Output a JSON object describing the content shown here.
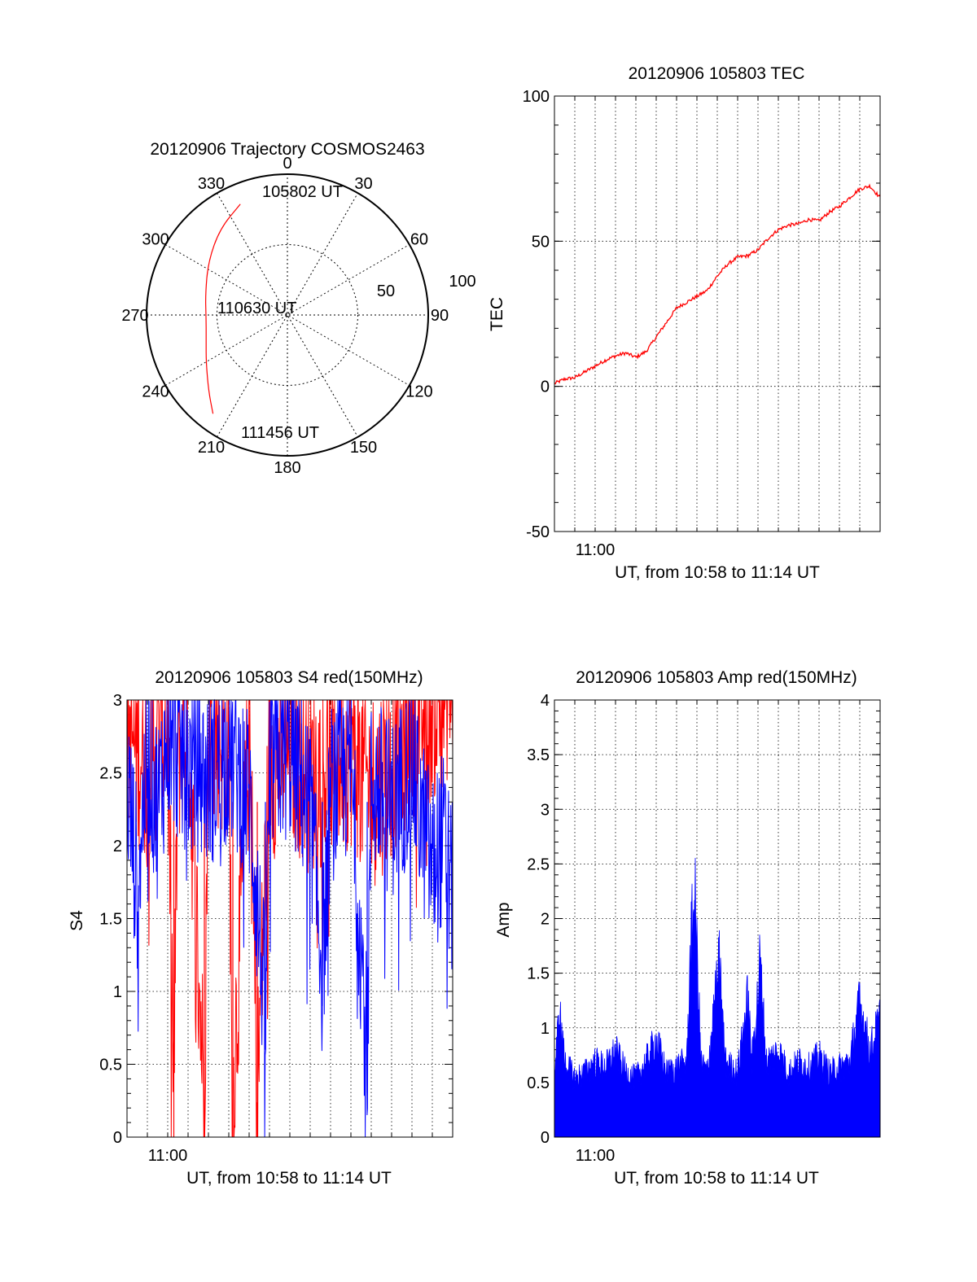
{
  "chart_data": [
    {
      "type": "polar",
      "title": "20120906 Trajectory COSMOS2463",
      "azimuth_labels": [
        "0",
        "30",
        "60",
        "90",
        "120",
        "150",
        "180",
        "210",
        "240",
        "270",
        "300",
        "330"
      ],
      "radius_labels": [
        "50",
        "100"
      ],
      "annotations": [
        "105802 UT",
        "110630 UT",
        "111456 UT"
      ],
      "trajectory": {
        "color": "#ff0000",
        "points": [
          {
            "az": 337,
            "el": 13
          },
          {
            "az": 322,
            "el": 20
          },
          {
            "az": 304,
            "el": 29
          },
          {
            "az": 284,
            "el": 36
          },
          {
            "az": 268,
            "el": 38
          },
          {
            "az": 254,
            "el": 36
          },
          {
            "az": 240,
            "el": 30
          },
          {
            "az": 226,
            "el": 20
          },
          {
            "az": 217,
            "el": 11
          }
        ]
      }
    },
    {
      "type": "line",
      "title": "20120906 105803 TEC",
      "xlabel": "UT, from 10:58 to 11:14 UT",
      "ylabel": "TEC",
      "x_tick_labels": [
        "11:00"
      ],
      "y_tick_labels": [
        "-50",
        "0",
        "50",
        "100"
      ],
      "xlim": [
        0,
        16
      ],
      "ylim": [
        -50,
        100
      ],
      "grid": true,
      "series": [
        {
          "color": "#ff0000",
          "x": [
            0,
            0.5,
            1,
            1.5,
            2,
            2.5,
            3,
            3.5,
            4,
            4.5,
            5,
            5.5,
            6,
            6.5,
            7,
            7.5,
            8,
            8.5,
            9,
            9.5,
            10,
            10.5,
            11,
            11.5,
            12,
            12.5,
            13,
            13.5,
            14,
            14.5,
            15,
            15.5,
            16
          ],
          "y": [
            1,
            2.5,
            3,
            5,
            7,
            9,
            10.5,
            11.5,
            10,
            12,
            17,
            22,
            27,
            29,
            31,
            33,
            38,
            42,
            44.5,
            45,
            47,
            51,
            54,
            55.5,
            56,
            57.5,
            57,
            60,
            62,
            65,
            68,
            69,
            65
          ]
        }
      ]
    },
    {
      "type": "line",
      "title": "20120906 105803 S4 red(150MHz)",
      "xlabel": "UT, from 10:58 to 11:14 UT",
      "ylabel": "S4",
      "x_tick_labels": [
        "11:00"
      ],
      "y_tick_labels": [
        "0",
        "0.5",
        "1",
        "1.5",
        "2",
        "2.5",
        "3"
      ],
      "xlim": [
        0,
        16
      ],
      "ylim": [
        0,
        3
      ],
      "grid": true,
      "series": [
        {
          "color": "#ff0000",
          "x": [
            0,
            1,
            2,
            2.3,
            2.5,
            3,
            3.8,
            4,
            5,
            5.2,
            6,
            6.4,
            7,
            8,
            9,
            10,
            11,
            12,
            13,
            14,
            15,
            15.5,
            16
          ],
          "y": [
            2.5,
            2.3,
            2.6,
            0,
            2.4,
            2.5,
            0,
            2.6,
            2.4,
            0,
            2.5,
            0,
            2.3,
            2.4,
            2.2,
            2.3,
            2.4,
            2.1,
            2.3,
            2.6,
            2.7,
            2.8,
            2.9
          ]
        },
        {
          "color": "#0000ff",
          "x": [
            0,
            0.5,
            1,
            1.5,
            2,
            3,
            4,
            5,
            6,
            6.8,
            7,
            8,
            9,
            9.6,
            10,
            11,
            11.8,
            12,
            13,
            14,
            14.5,
            15,
            15.5,
            16
          ],
          "y": [
            2.2,
            1.5,
            2.4,
            2.0,
            2.5,
            2.3,
            2.2,
            2.4,
            2.1,
            0.6,
            2.3,
            2.4,
            2.0,
            0.9,
            2.1,
            2.3,
            0.3,
            2.2,
            2.0,
            2.3,
            1.9,
            1.6,
            1.8,
            1.4
          ]
        }
      ]
    },
    {
      "type": "area",
      "title": "20120906 105803 Amp red(150MHz)",
      "xlabel": "UT, from 10:58 to 11:14 UT",
      "ylabel": "Amp",
      "x_tick_labels": [
        "11:00"
      ],
      "y_tick_labels": [
        "0",
        "0.5",
        "1",
        "1.5",
        "2",
        "2.5",
        "3",
        "3.5",
        "4"
      ],
      "xlim": [
        0,
        16
      ],
      "ylim": [
        0,
        4
      ],
      "grid": true,
      "series": [
        {
          "color": "#0000ff",
          "x": [
            0,
            0.25,
            0.5,
            1,
            1.5,
            2,
            2.5,
            3,
            3.5,
            4,
            4.5,
            5,
            5.5,
            6,
            6.5,
            6.7,
            6.9,
            7.2,
            7.5,
            8,
            8.1,
            8.4,
            9,
            9.5,
            9.7,
            10,
            10.1,
            10.4,
            11,
            11.5,
            12,
            12.5,
            13,
            13.5,
            14,
            14.5,
            15,
            15.5,
            16
          ],
          "y": [
            0.6,
            1.15,
            0.7,
            0.55,
            0.6,
            0.7,
            0.65,
            0.8,
            0.6,
            0.55,
            0.7,
            0.9,
            0.6,
            0.65,
            0.7,
            1.8,
            2.25,
            0.7,
            0.6,
            1.45,
            1.6,
            0.7,
            0.6,
            1.3,
            0.7,
            1.35,
            1.65,
            0.7,
            0.8,
            0.6,
            0.7,
            0.65,
            0.75,
            0.6,
            0.65,
            0.7,
            1.25,
            0.8,
            1.1
          ]
        }
      ]
    }
  ]
}
